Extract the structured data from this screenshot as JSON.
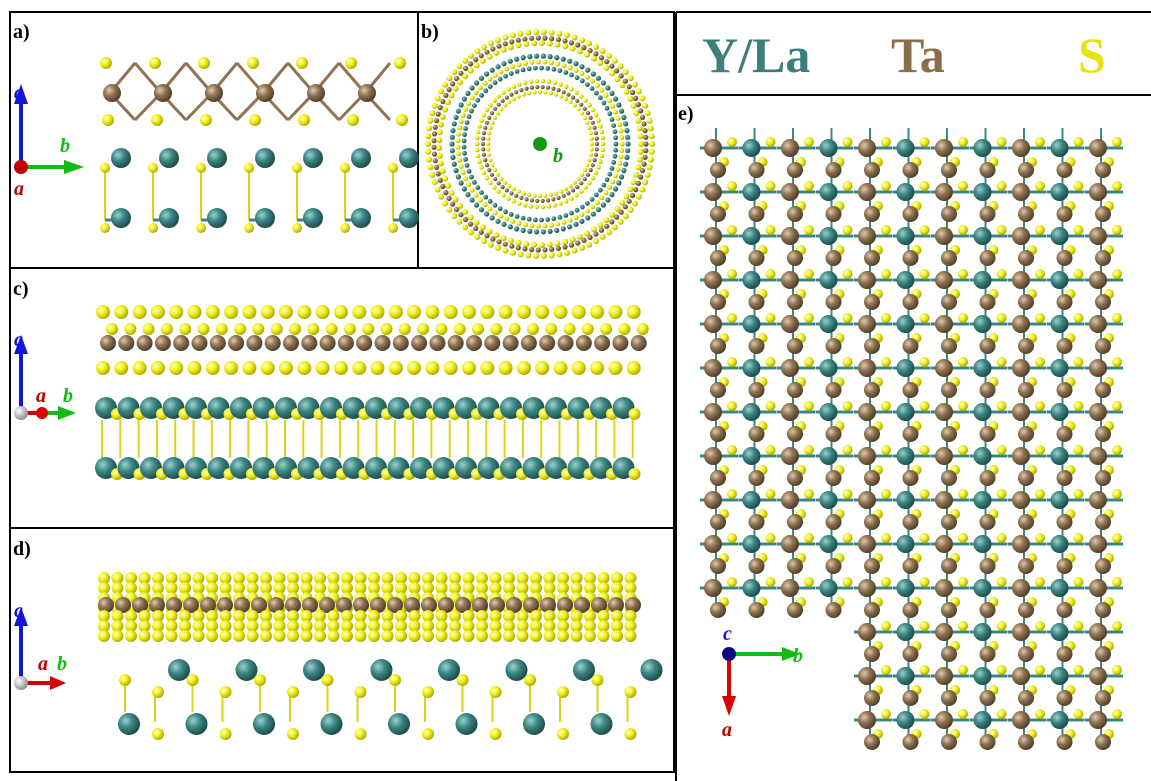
{
  "panels": {
    "a": "a)",
    "b": "b)",
    "c": "c)",
    "d": "d)",
    "e": "e)"
  },
  "axis_labels": {
    "a": "a",
    "b": "b",
    "c": "c"
  },
  "legend": [
    {
      "label": "Y/La",
      "color": "#3d7f7c"
    },
    {
      "label": "Ta",
      "color": "#8a6e49"
    },
    {
      "label": "S",
      "color": "#e6e40f"
    }
  ],
  "colors": {
    "y_la_atom": "#3b8784",
    "ta_atom": "#8f7352",
    "s_atom": "#f2f21a",
    "axis_a": "#d80000",
    "axis_b": "#11bb11",
    "axis_c": "#1515d8",
    "axis_b_dot": "#119911"
  }
}
